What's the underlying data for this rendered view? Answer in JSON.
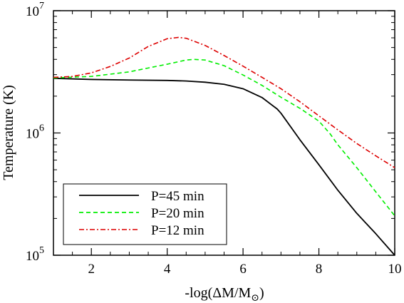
{
  "chart_data": {
    "type": "line",
    "xlabel": "-log(ΔM/M",
    "xlabel_sub": "⊙",
    "xlabel_close": ")",
    "ylabel": "Temperature (K)",
    "xlim": [
      1,
      10
    ],
    "ylim": [
      100000,
      10000000
    ],
    "yscale": "log",
    "x_ticks": [
      2,
      4,
      6,
      8,
      10
    ],
    "x_tick_labels": [
      "2",
      "4",
      "6",
      "8",
      "10"
    ],
    "y_ticks": [
      100000,
      1000000,
      10000000
    ],
    "y_tick_labels": [
      {
        "base": "10",
        "exp": "5"
      },
      {
        "base": "10",
        "exp": "6"
      },
      {
        "base": "10",
        "exp": "7"
      }
    ],
    "grid": false,
    "legend_position": "lower-left",
    "series": [
      {
        "name": "P=45 min",
        "color": "#000000",
        "dash": "solid",
        "x": [
          1.0,
          2.0,
          3.0,
          4.0,
          4.5,
          5.0,
          5.5,
          6.0,
          6.5,
          6.9,
          7.0,
          7.5,
          8.0,
          8.5,
          9.0,
          9.5,
          10.0
        ],
        "y": [
          2800000,
          2740000,
          2710000,
          2690000,
          2660000,
          2600000,
          2500000,
          2300000,
          1950000,
          1570000,
          1450000,
          880000,
          550000,
          340000,
          220000,
          150000,
          100000
        ]
      },
      {
        "name": "P=20 min",
        "color": "#00ee00",
        "dash": "dashed",
        "x": [
          1.0,
          2.0,
          3.0,
          3.5,
          4.0,
          4.5,
          4.7,
          5.0,
          5.5,
          6.0,
          6.5,
          7.0,
          7.5,
          8.0,
          8.3,
          8.5,
          9.0,
          9.5,
          10.0
        ],
        "y": [
          2820000,
          2900000,
          3160000,
          3400000,
          3650000,
          3950000,
          4000000,
          3950000,
          3550000,
          2980000,
          2450000,
          1960000,
          1590000,
          1250000,
          980000,
          800000,
          520000,
          330000,
          210000
        ]
      },
      {
        "name": "P=12 min",
        "color": "#dd0000",
        "dash": "dashdot",
        "x": [
          1.0,
          1.5,
          2.0,
          2.5,
          3.0,
          3.5,
          4.0,
          4.3,
          4.5,
          5.0,
          5.5,
          6.0,
          6.5,
          7.0,
          7.5,
          8.0,
          8.5,
          9.0,
          9.5,
          10.0
        ],
        "y": [
          2850000,
          2900000,
          3100000,
          3500000,
          4100000,
          5100000,
          5900000,
          6050000,
          5950000,
          5200000,
          4300000,
          3520000,
          2850000,
          2300000,
          1800000,
          1380000,
          1060000,
          820000,
          650000,
          520000
        ]
      }
    ]
  }
}
